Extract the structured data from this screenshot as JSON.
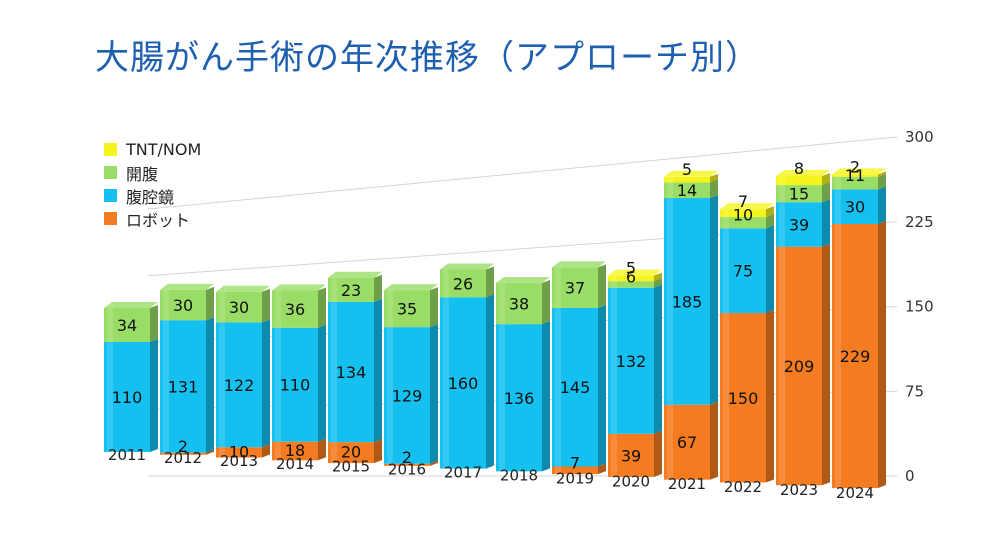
{
  "title": "大腸がん手術の年次推移（アプローチ別）",
  "chart_data": {
    "type": "bar",
    "stacked": true,
    "title": "大腸がん手術の年次推移（アプローチ別）",
    "categories": [
      "2011",
      "2012",
      "2013",
      "2014",
      "2015",
      "2016",
      "2017",
      "2018",
      "2019",
      "2020",
      "2021",
      "2022",
      "2023",
      "2024"
    ],
    "series": [
      {
        "name": "ロボット",
        "color": "#f47b20",
        "values": [
          0,
          2,
          10,
          18,
          20,
          2,
          0,
          0,
          7,
          39,
          67,
          150,
          209,
          229
        ],
        "labels": [
          "",
          "2",
          "10",
          "18",
          "20",
          "2",
          "",
          "",
          "7",
          "39",
          "67",
          "150",
          "209",
          "229"
        ]
      },
      {
        "name": "腹腔鏡",
        "color": "#14c0f0",
        "values": [
          110,
          131,
          122,
          110,
          134,
          129,
          160,
          136,
          145,
          132,
          185,
          75,
          39,
          30
        ],
        "labels": [
          "110",
          "131",
          "122",
          "110",
          "134",
          "129",
          "160",
          "136",
          "145",
          "132",
          "185",
          "75",
          "39",
          "30"
        ]
      },
      {
        "name": "開腹",
        "color": "#99dd66",
        "values": [
          34,
          30,
          30,
          36,
          23,
          35,
          26,
          38,
          37,
          6,
          14,
          10,
          15,
          11
        ],
        "labels": [
          "34",
          "30",
          "30",
          "36",
          "23",
          "35",
          "26",
          "38",
          "37",
          "6",
          "14",
          "10",
          "15",
          "11"
        ]
      },
      {
        "name": "TNT/NOM",
        "color": "#f5f51e",
        "values": [
          0,
          0,
          0,
          0,
          0,
          0,
          0,
          0,
          0,
          5,
          5,
          7,
          8,
          2
        ],
        "labels": [
          "",
          "",
          "",
          "",
          "",
          "",
          "",
          "",
          "",
          "5",
          "5",
          "7",
          "8",
          "2"
        ]
      }
    ],
    "y_axis": {
      "ticks": [
        "0",
        "75",
        "150",
        "225",
        "300"
      ],
      "ylim": [
        0,
        300
      ],
      "position": "right"
    },
    "grid": true,
    "legend": {
      "position": "top-left",
      "order": [
        "TNT/NOM",
        "開腹",
        "腹腔鏡",
        "ロボット"
      ]
    }
  }
}
